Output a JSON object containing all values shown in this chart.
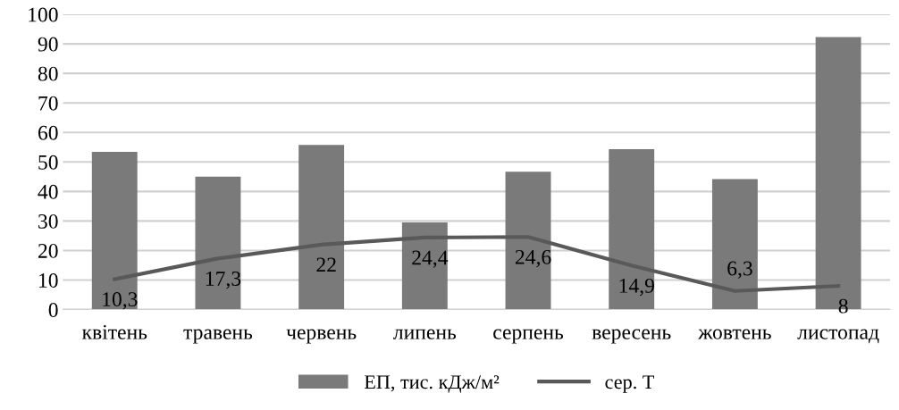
{
  "chart_data": {
    "type": "bar",
    "categories": [
      "квітень",
      "травень",
      "червень",
      "липень",
      "серпень",
      "вересень",
      "жовтень",
      "листопад"
    ],
    "series": [
      {
        "name": "ЕП, тис. кДж/м²",
        "color": "#7a7a7a",
        "values": [
          53.4,
          45,
          55.8,
          29.5,
          46.7,
          54.3,
          44.2,
          92.3
        ]
      },
      {
        "name": "сер. Т",
        "type": "line",
        "color": "#595959",
        "values": [
          10.3,
          17.3,
          22,
          24.4,
          24.6,
          14.9,
          6.3,
          8
        ],
        "value_labels": [
          "10,3",
          "17,3",
          "22",
          "24,4",
          "24,6",
          "14,9",
          "6,3",
          "8"
        ]
      }
    ],
    "ylim": [
      0,
      100
    ],
    "yticks": [
      0,
      10,
      20,
      30,
      40,
      50,
      60,
      70,
      80,
      90,
      100
    ],
    "grid": "y",
    "legend": "bottom",
    "marker": "none",
    "line_style": "solid"
  }
}
